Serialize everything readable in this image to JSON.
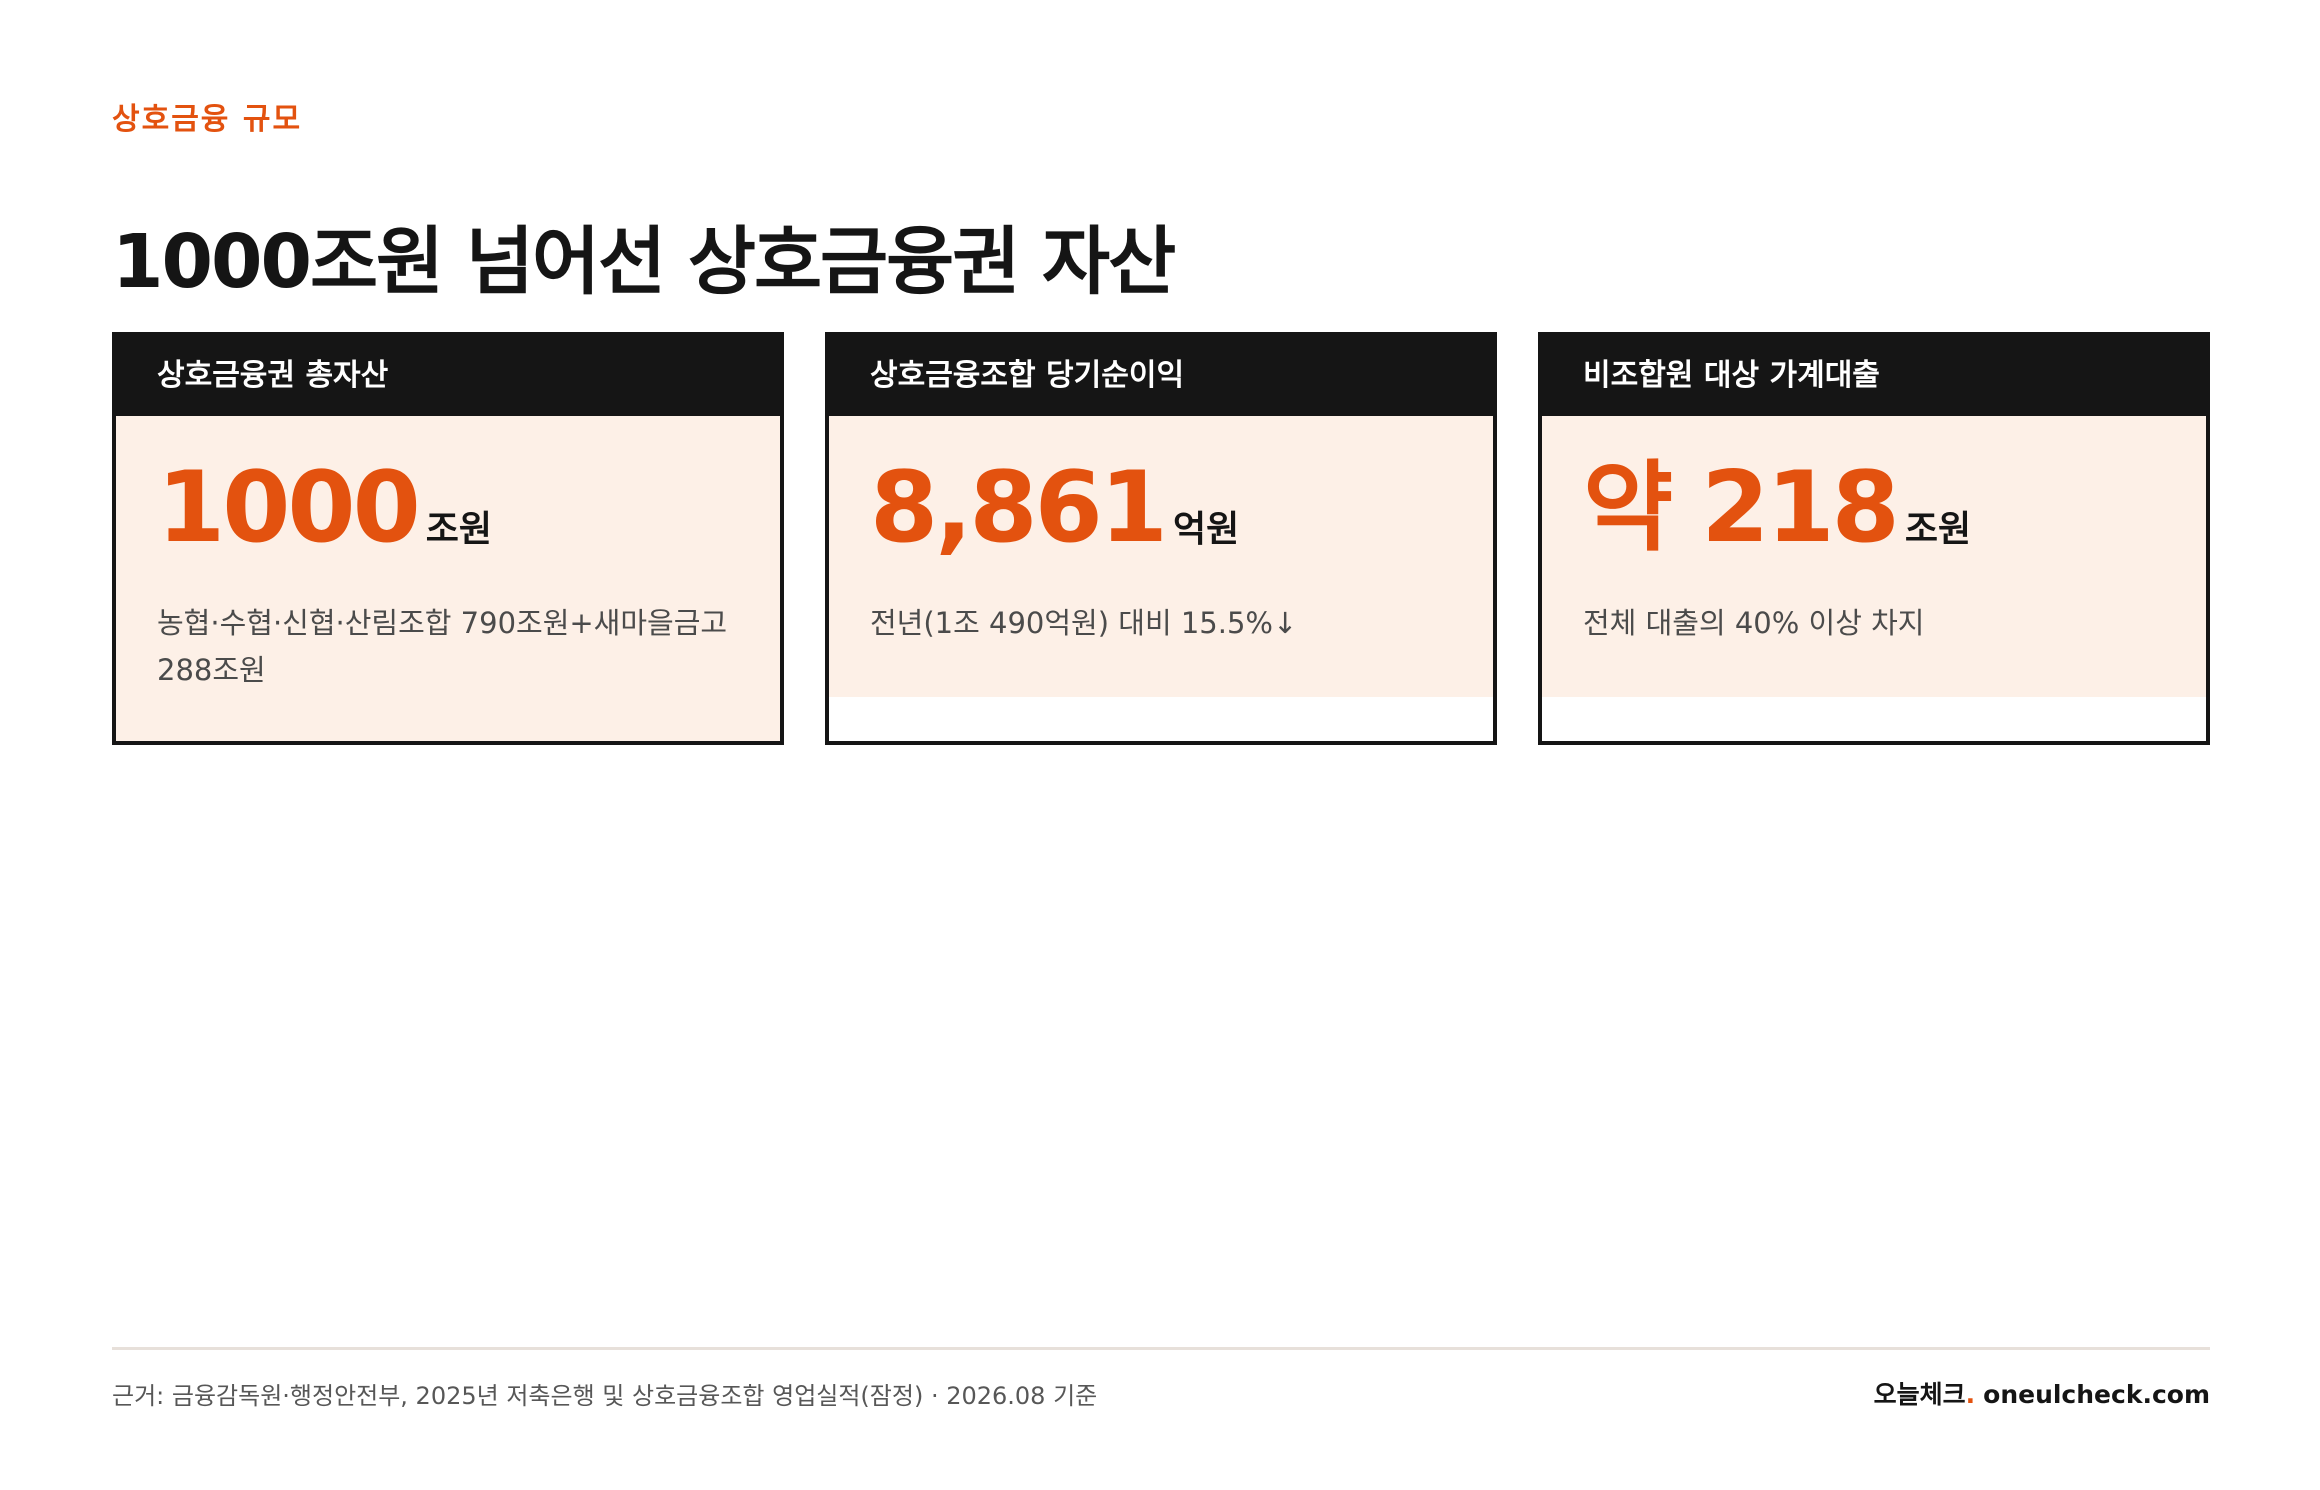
{
  "header": {
    "kicker": "상호금융 규모",
    "title": "1000조원 넘어선 상호금융권 자산"
  },
  "cards": [
    {
      "label": "상호금융권 총자산",
      "value": "1000",
      "unit": "조원",
      "note": "농협·수협·신협·산림조합 790조원+새마을금고 288조원"
    },
    {
      "label": "상호금융조합 당기순이익",
      "value": "8,861",
      "unit": "억원",
      "note": "전년(1조 490억원) 대비 15.5%↓"
    },
    {
      "label": "비조합원 대상 가계대출",
      "value": "약 218",
      "unit": "조원",
      "note": "전체 대출의 40% 이상 차지"
    }
  ],
  "footer": {
    "source": "근거: 금융감독원·행정안전부, 2025년 저축은행 및 상호금융조합 영업실적(잠정) · 2026.08 기준",
    "brand_name": "오늘체크",
    "brand_dot": ".",
    "brand_domain": "oneulcheck.com"
  },
  "colors": {
    "accent": "#e3520f",
    "header_background": "#151515",
    "card_background": "#fdf0e7"
  }
}
